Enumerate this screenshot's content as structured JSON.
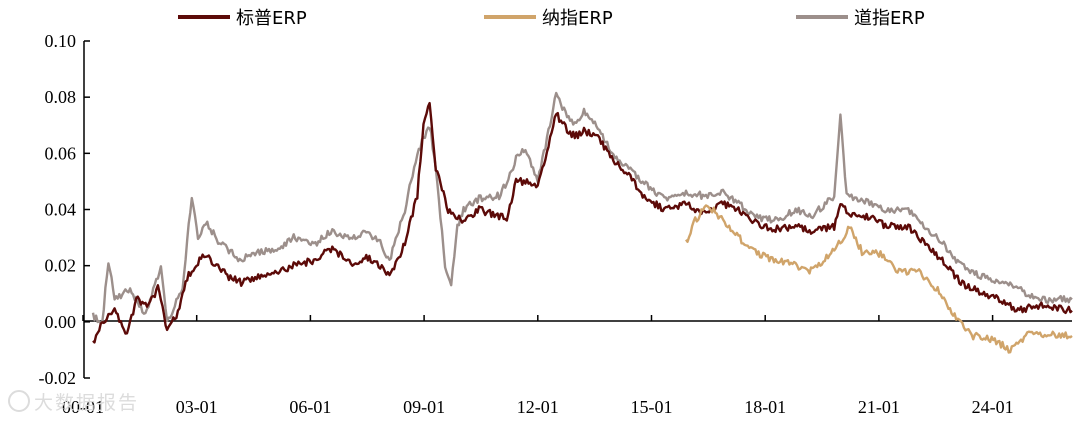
{
  "chart_data": {
    "type": "line",
    "title": "",
    "xlabel": "",
    "ylabel": "",
    "ylim": [
      -0.02,
      0.1
    ],
    "yticks": [
      "-0.02",
      "0.00",
      "0.02",
      "0.04",
      "0.06",
      "0.08",
      "0.10"
    ],
    "xticks": [
      "00-01",
      "03-01",
      "06-01",
      "09-01",
      "12-01",
      "15-01",
      "18-01",
      "21-01",
      "24-01"
    ],
    "grid": false,
    "legend_position": "top",
    "x_range": [
      "2000-01",
      "2026-06"
    ],
    "series": [
      {
        "name": "标普ERP",
        "color": "#5c0a08",
        "points": [
          [
            "2000-01",
            -0.008
          ],
          [
            "2000-04",
            0.0
          ],
          [
            "2000-08",
            0.004
          ],
          [
            "2000-12",
            -0.005
          ],
          [
            "2001-03",
            0.008
          ],
          [
            "2001-07",
            0.006
          ],
          [
            "2001-10",
            0.012
          ],
          [
            "2002-01",
            -0.003
          ],
          [
            "2002-05",
            0.004
          ],
          [
            "2002-07",
            0.015
          ],
          [
            "2002-10",
            0.02
          ],
          [
            "2003-01",
            0.024
          ],
          [
            "2003-05",
            0.02
          ],
          [
            "2003-09",
            0.016
          ],
          [
            "2004-01",
            0.014
          ],
          [
            "2004-06",
            0.016
          ],
          [
            "2005-01",
            0.018
          ],
          [
            "2005-06",
            0.02
          ],
          [
            "2006-01",
            0.022
          ],
          [
            "2006-06",
            0.026
          ],
          [
            "2007-01",
            0.021
          ],
          [
            "2007-06",
            0.023
          ],
          [
            "2007-10",
            0.02
          ],
          [
            "2008-01",
            0.016
          ],
          [
            "2008-06",
            0.028
          ],
          [
            "2008-10",
            0.045
          ],
          [
            "2008-12",
            0.07
          ],
          [
            "2009-02",
            0.079
          ],
          [
            "2009-04",
            0.055
          ],
          [
            "2009-08",
            0.04
          ],
          [
            "2010-01",
            0.036
          ],
          [
            "2010-06",
            0.04
          ],
          [
            "2010-11",
            0.038
          ],
          [
            "2011-03",
            0.037
          ],
          [
            "2011-06",
            0.05
          ],
          [
            "2011-09",
            0.05
          ],
          [
            "2012-01",
            0.048
          ],
          [
            "2012-04",
            0.061
          ],
          [
            "2012-07",
            0.074
          ],
          [
            "2012-10",
            0.069
          ],
          [
            "2013-01",
            0.066
          ],
          [
            "2013-04",
            0.068
          ],
          [
            "2013-09",
            0.065
          ],
          [
            "2014-01",
            0.058
          ],
          [
            "2014-06",
            0.053
          ],
          [
            "2014-12",
            0.044
          ],
          [
            "2015-06",
            0.04
          ],
          [
            "2016-01",
            0.042
          ],
          [
            "2016-06",
            0.039
          ],
          [
            "2017-01",
            0.042
          ],
          [
            "2017-06",
            0.04
          ],
          [
            "2018-01",
            0.034
          ],
          [
            "2018-06",
            0.033
          ],
          [
            "2019-01",
            0.034
          ],
          [
            "2019-06",
            0.032
          ],
          [
            "2020-01",
            0.034
          ],
          [
            "2020-03",
            0.043
          ],
          [
            "2020-06",
            0.038
          ],
          [
            "2021-01",
            0.037
          ],
          [
            "2021-06",
            0.034
          ],
          [
            "2022-01",
            0.034
          ],
          [
            "2022-06",
            0.028
          ],
          [
            "2022-12",
            0.022
          ],
          [
            "2023-06",
            0.014
          ],
          [
            "2024-01",
            0.01
          ],
          [
            "2024-06",
            0.008
          ],
          [
            "2025-01",
            0.004
          ],
          [
            "2025-06",
            0.006
          ],
          [
            "2026-06",
            0.004
          ]
        ]
      },
      {
        "name": "纳指ERP",
        "color": "#d0a46a",
        "points": [
          [
            "2016-01",
            0.028
          ],
          [
            "2016-04",
            0.036
          ],
          [
            "2016-08",
            0.042
          ],
          [
            "2017-01",
            0.036
          ],
          [
            "2017-06",
            0.03
          ],
          [
            "2018-01",
            0.024
          ],
          [
            "2018-06",
            0.022
          ],
          [
            "2019-01",
            0.02
          ],
          [
            "2019-06",
            0.018
          ],
          [
            "2020-01",
            0.026
          ],
          [
            "2020-04",
            0.03
          ],
          [
            "2020-06",
            0.034
          ],
          [
            "2020-10",
            0.025
          ],
          [
            "2021-04",
            0.024
          ],
          [
            "2021-10",
            0.018
          ],
          [
            "2022-04",
            0.018
          ],
          [
            "2022-10",
            0.012
          ],
          [
            "2023-04",
            0.002
          ],
          [
            "2023-10",
            -0.005
          ],
          [
            "2024-04",
            -0.006
          ],
          [
            "2024-10",
            -0.01
          ],
          [
            "2025-04",
            -0.004
          ],
          [
            "2026-06",
            -0.005
          ]
        ]
      },
      {
        "name": "道指ERP",
        "color": "#9c8f8b",
        "points": [
          [
            "2000-01",
            0.002
          ],
          [
            "2000-04",
            0.0
          ],
          [
            "2000-06",
            0.022
          ],
          [
            "2000-08",
            0.008
          ],
          [
            "2001-01",
            0.012
          ],
          [
            "2001-06",
            0.002
          ],
          [
            "2001-11",
            0.02
          ],
          [
            "2002-01",
            0.0
          ],
          [
            "2002-06",
            0.012
          ],
          [
            "2002-09",
            0.045
          ],
          [
            "2002-11",
            0.03
          ],
          [
            "2003-02",
            0.035
          ],
          [
            "2003-06",
            0.028
          ],
          [
            "2004-01",
            0.022
          ],
          [
            "2004-06",
            0.025
          ],
          [
            "2005-01",
            0.026
          ],
          [
            "2005-06",
            0.03
          ],
          [
            "2006-01",
            0.028
          ],
          [
            "2006-06",
            0.032
          ],
          [
            "2007-01",
            0.03
          ],
          [
            "2007-06",
            0.032
          ],
          [
            "2007-10",
            0.028
          ],
          [
            "2008-01",
            0.022
          ],
          [
            "2008-06",
            0.04
          ],
          [
            "2008-10",
            0.06
          ],
          [
            "2009-02",
            0.07
          ],
          [
            "2009-04",
            0.055
          ],
          [
            "2009-07",
            0.02
          ],
          [
            "2009-09",
            0.013
          ],
          [
            "2009-11",
            0.034
          ],
          [
            "2010-01",
            0.04
          ],
          [
            "2010-06",
            0.044
          ],
          [
            "2011-01",
            0.045
          ],
          [
            "2011-06",
            0.058
          ],
          [
            "2011-09",
            0.062
          ],
          [
            "2012-01",
            0.05
          ],
          [
            "2012-04",
            0.065
          ],
          [
            "2012-07",
            0.082
          ],
          [
            "2012-10",
            0.074
          ],
          [
            "2013-01",
            0.07
          ],
          [
            "2013-04",
            0.075
          ],
          [
            "2013-09",
            0.068
          ],
          [
            "2014-01",
            0.06
          ],
          [
            "2014-06",
            0.055
          ],
          [
            "2015-01",
            0.048
          ],
          [
            "2015-06",
            0.044
          ],
          [
            "2016-01",
            0.046
          ],
          [
            "2016-06",
            0.045
          ],
          [
            "2017-01",
            0.046
          ],
          [
            "2017-06",
            0.042
          ],
          [
            "2018-01",
            0.037
          ],
          [
            "2018-06",
            0.036
          ],
          [
            "2019-01",
            0.04
          ],
          [
            "2019-06",
            0.038
          ],
          [
            "2020-01",
            0.045
          ],
          [
            "2020-03",
            0.074
          ],
          [
            "2020-05",
            0.045
          ],
          [
            "2021-01",
            0.042
          ],
          [
            "2021-06",
            0.04
          ],
          [
            "2022-01",
            0.04
          ],
          [
            "2022-06",
            0.034
          ],
          [
            "2022-12",
            0.028
          ],
          [
            "2023-06",
            0.02
          ],
          [
            "2024-01",
            0.016
          ],
          [
            "2024-06",
            0.014
          ],
          [
            "2025-01",
            0.012
          ],
          [
            "2025-06",
            0.008
          ],
          [
            "2026-06",
            0.008
          ]
        ]
      }
    ]
  },
  "watermark": {
    "text": "大数据报告"
  }
}
